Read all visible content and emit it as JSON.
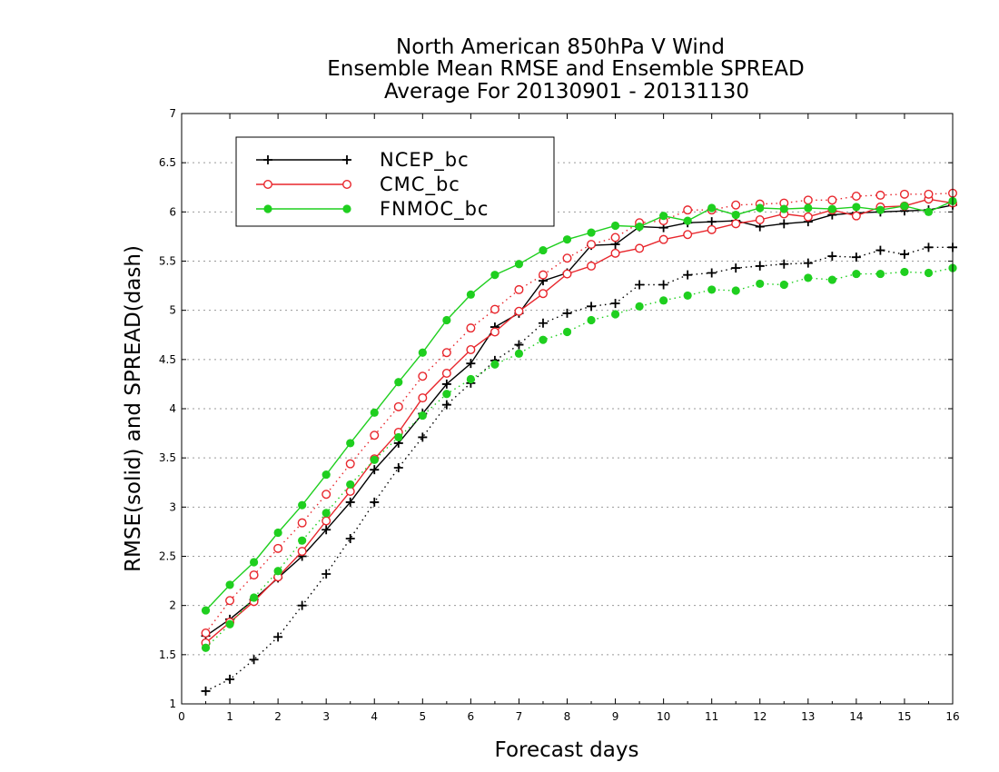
{
  "chart_data": {
    "type": "line",
    "title": [
      "North American 850hPa V Wind",
      "Ensemble Mean RMSE and Ensemble SPREAD",
      "Average For 20130901 - 20131130"
    ],
    "xlabel": "Forecast days",
    "ylabel": "RMSE(solid) and SPREAD(dash)",
    "xlim": [
      0,
      16
    ],
    "ylim": [
      1,
      7
    ],
    "xticks": [
      "0",
      "1",
      "2",
      "3",
      "4",
      "5",
      "6",
      "7",
      "8",
      "9",
      "10",
      "11",
      "12",
      "13",
      "14",
      "15",
      "16"
    ],
    "yticks": [
      "1",
      "1.5",
      "2",
      "2.5",
      "3",
      "3.5",
      "4",
      "4.5",
      "5",
      "5.5",
      "6",
      "6.5",
      "7"
    ],
    "grid": true,
    "legend_position": "top-left",
    "x": [
      0.5,
      1,
      1.5,
      2,
      2.5,
      3,
      3.5,
      4,
      4.5,
      5,
      5.5,
      6,
      6.5,
      7,
      7.5,
      8,
      8.5,
      9,
      9.5,
      10,
      10.5,
      11,
      11.5,
      12,
      12.5,
      13,
      13.5,
      14,
      14.5,
      15,
      15.5,
      16
    ],
    "series": [
      {
        "name": "NCEP_bc",
        "color": "#000000",
        "marker": "plus",
        "style": "solid",
        "values": [
          1.69,
          1.86,
          2.06,
          2.28,
          2.5,
          2.77,
          3.05,
          3.38,
          3.65,
          3.95,
          4.25,
          4.46,
          4.83,
          4.97,
          5.3,
          5.38,
          5.66,
          5.67,
          5.85,
          5.84,
          5.89,
          5.9,
          5.91,
          5.85,
          5.88,
          5.9,
          5.97,
          5.99,
          6.0,
          6.01,
          6.02,
          6.07
        ]
      },
      {
        "name": "",
        "color": "#000000",
        "marker": "plus",
        "style": "dash",
        "values": [
          1.13,
          1.25,
          1.45,
          1.68,
          2.0,
          2.32,
          2.68,
          3.05,
          3.4,
          3.71,
          4.04,
          4.26,
          4.49,
          4.65,
          4.87,
          4.97,
          5.04,
          5.07,
          5.26,
          5.26,
          5.36,
          5.38,
          5.43,
          5.45,
          5.47,
          5.48,
          5.55,
          5.54,
          5.61,
          5.57,
          5.64,
          5.64
        ]
      },
      {
        "name": "CMC_bc",
        "color": "#e8262c",
        "marker": "circle-open",
        "style": "solid",
        "values": [
          1.62,
          1.83,
          2.04,
          2.29,
          2.55,
          2.86,
          3.16,
          3.49,
          3.76,
          4.11,
          4.36,
          4.6,
          4.78,
          4.99,
          5.17,
          5.37,
          5.45,
          5.58,
          5.63,
          5.72,
          5.77,
          5.82,
          5.88,
          5.92,
          5.98,
          5.95,
          6.02,
          5.96,
          6.05,
          6.06,
          6.13,
          6.09
        ]
      },
      {
        "name": "",
        "color": "#e8262c",
        "marker": "circle-open",
        "style": "dash",
        "values": [
          1.72,
          2.05,
          2.31,
          2.58,
          2.84,
          3.13,
          3.44,
          3.73,
          4.02,
          4.33,
          4.57,
          4.82,
          5.01,
          5.21,
          5.36,
          5.53,
          5.67,
          5.74,
          5.89,
          5.91,
          6.02,
          6.02,
          6.07,
          6.08,
          6.09,
          6.12,
          6.12,
          6.16,
          6.17,
          6.18,
          6.18,
          6.19
        ]
      },
      {
        "name": "FNMOC_bc",
        "color": "#1fcf1f",
        "marker": "circle-filled",
        "style": "solid",
        "values": [
          1.95,
          2.21,
          2.44,
          2.74,
          3.02,
          3.33,
          3.65,
          3.96,
          4.27,
          4.57,
          4.9,
          5.16,
          5.36,
          5.47,
          5.61,
          5.72,
          5.79,
          5.86,
          5.85,
          5.96,
          5.91,
          6.04,
          5.97,
          6.04,
          6.03,
          6.04,
          6.03,
          6.05,
          6.02,
          6.06,
          6.0,
          6.11
        ]
      },
      {
        "name": "",
        "color": "#1fcf1f",
        "marker": "circle-filled",
        "style": "dash",
        "values": [
          1.57,
          1.81,
          2.08,
          2.35,
          2.66,
          2.94,
          3.23,
          3.48,
          3.71,
          3.93,
          4.15,
          4.3,
          4.45,
          4.56,
          4.7,
          4.78,
          4.9,
          4.96,
          5.04,
          5.1,
          5.15,
          5.21,
          5.2,
          5.27,
          5.26,
          5.33,
          5.31,
          5.37,
          5.37,
          5.39,
          5.38,
          5.43
        ]
      }
    ]
  }
}
